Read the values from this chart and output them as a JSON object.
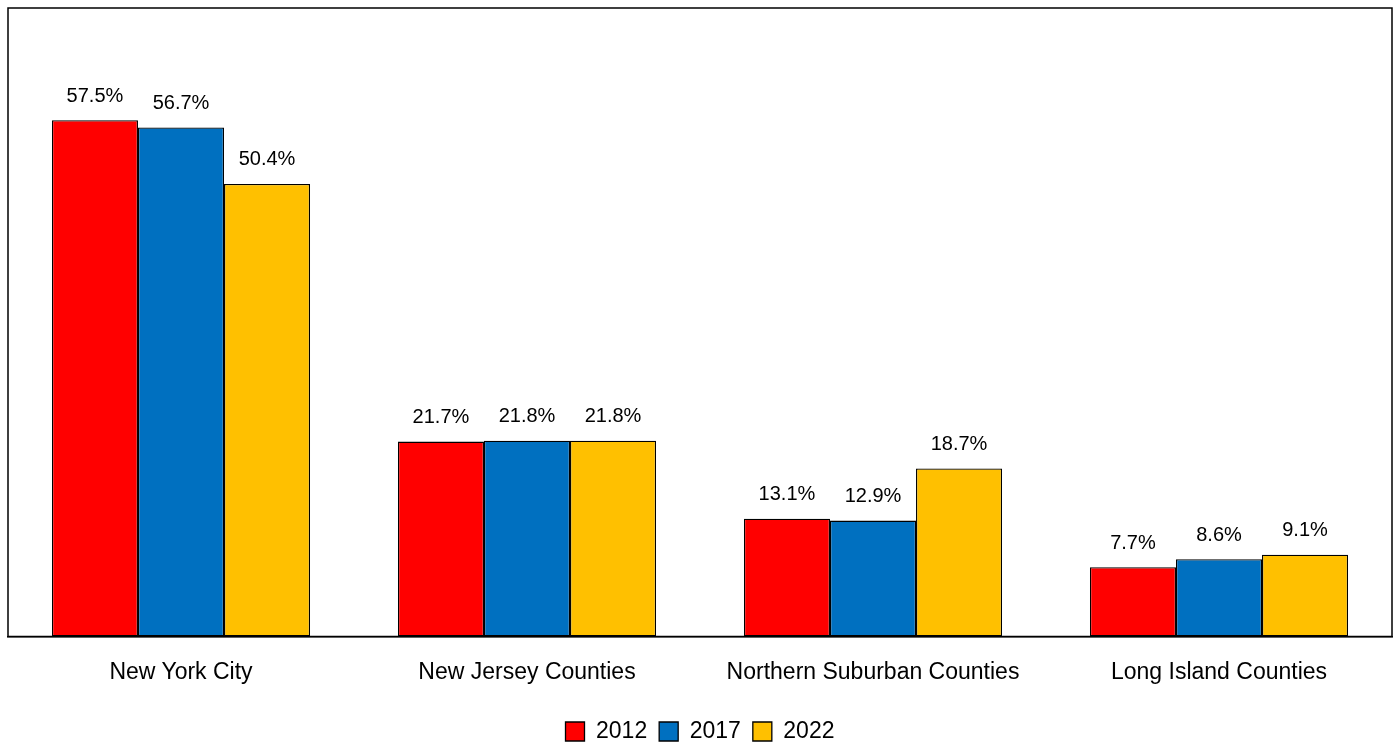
{
  "chart_data": {
    "type": "bar",
    "categories": [
      "New York City",
      "New Jersey Counties",
      "Northern Suburban Counties",
      "Long Island Counties"
    ],
    "series": [
      {
        "name": "2012",
        "color": "#ff0000",
        "values": [
          57.5,
          21.7,
          13.1,
          7.7
        ],
        "value_labels": [
          "57.5%",
          "21.7%",
          "13.1%",
          "7.7%"
        ]
      },
      {
        "name": "2017",
        "color": "#0070c0",
        "values": [
          56.7,
          21.8,
          12.9,
          8.6
        ],
        "value_labels": [
          "56.7%",
          "21.8%",
          "12.9%",
          "8.6%"
        ]
      },
      {
        "name": "2022",
        "color": "#ffc000",
        "values": [
          50.4,
          21.8,
          18.7,
          9.1
        ],
        "value_labels": [
          "50.4%",
          "21.8%",
          "18.7%",
          "9.1%"
        ]
      }
    ],
    "ylim": [
      0,
      70
    ],
    "tick_labels": "x",
    "grid": false,
    "legend": "bottom"
  }
}
